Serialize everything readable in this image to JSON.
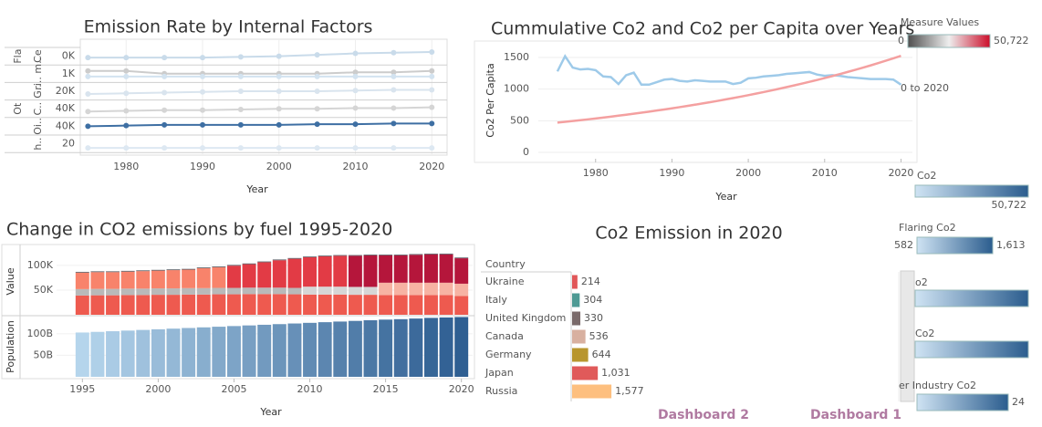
{
  "chart_data": [
    {
      "type": "multiples",
      "title": "Emission Rate by Internal Factors",
      "x_label": "Year",
      "x": [
        1975,
        1980,
        1985,
        1990,
        1995,
        2000,
        2005,
        2010,
        2015,
        2020
      ],
      "xlim": [
        1974,
        2022
      ],
      "xticks": [
        1980,
        1990,
        2000,
        2010,
        2020
      ],
      "grid": true,
      "rows": [
        {
          "group": "Fla",
          "label": "Ce",
          "tick_label": "0K",
          "ylim": [
            0,
            10
          ],
          "series": [
            {
              "color": "#c9dbea",
              "values": [
                4,
                4,
                4,
                4,
                4.5,
                5,
                6,
                7,
                7.5,
                8
              ]
            }
          ]
        },
        {
          "label": "ri.. m..",
          "tick_label": "1K",
          "ylim": [
            0,
            10
          ],
          "series": [
            {
              "color": "#cccccc",
              "values": [
                7,
                7,
                5,
                5,
                5,
                5,
                5,
                6,
                6,
                7
              ]
            },
            {
              "color": "#d3e3f0",
              "values": [
                3,
                3,
                3,
                3,
                3,
                3,
                3,
                3,
                3,
                3
              ]
            }
          ]
        },
        {
          "label": "G..",
          "tick_label": "20K",
          "ylim": [
            0,
            10
          ],
          "series": [
            {
              "color": "#d9e4ee",
              "values": [
                3,
                3.5,
                4,
                4.5,
                5,
                5,
                5,
                5.5,
                6,
                6
              ]
            }
          ]
        },
        {
          "group": "Ot",
          "label": "C..",
          "tick_label": "40K",
          "ylim": [
            0,
            10
          ],
          "series": [
            {
              "color": "#d5d5d5",
              "values": [
                3,
                3.5,
                4,
                4,
                4.5,
                5,
                5,
                5.5,
                5.5,
                6
              ]
            }
          ]
        },
        {
          "label": "Oi..",
          "tick_label": "40K",
          "ylim": [
            0,
            10
          ],
          "series": [
            {
              "color": "#3e6fa3",
              "values": [
                5,
                5.5,
                6,
                6,
                6,
                6,
                6.5,
                6.5,
                7,
                7
              ]
            }
          ]
        },
        {
          "label": "h..",
          "tick_label": "20",
          "ylim": [
            0,
            10
          ],
          "series": [
            {
              "color": "#dde8f2",
              "values": [
                2,
                2,
                2,
                2,
                2,
                2,
                2,
                2,
                2,
                2
              ]
            }
          ]
        }
      ]
    },
    {
      "type": "line",
      "title": "Cummulative Co2 and Co2 per Capita over Years",
      "x_label": "Year",
      "y_label": "Co2 Per Capita",
      "annotation": "0 to 2020",
      "x": [
        1975,
        1976,
        1977,
        1978,
        1979,
        1980,
        1981,
        1982,
        1983,
        1984,
        1985,
        1986,
        1987,
        1988,
        1989,
        1990,
        1991,
        1992,
        1993,
        1994,
        1995,
        1996,
        1997,
        1998,
        1999,
        2000,
        2001,
        2002,
        2003,
        2004,
        2005,
        2006,
        2007,
        2008,
        2009,
        2010,
        2011,
        2012,
        2013,
        2014,
        2015,
        2016,
        2017,
        2018,
        2019,
        2020
      ],
      "xlim": [
        1972.5,
        2021.5
      ],
      "xticks": [
        1980,
        1990,
        2000,
        2010,
        2020
      ],
      "ylim": [
        0,
        1650
      ],
      "yticks": [
        0,
        500,
        1000,
        1500
      ],
      "y2lim": [
        0,
        1650
      ],
      "grid": true,
      "series": [
        {
          "color": "#9ecae9",
          "values": [
            1280,
            1520,
            1340,
            1310,
            1320,
            1300,
            1200,
            1190,
            1080,
            1220,
            1260,
            1070,
            1070,
            1110,
            1150,
            1160,
            1130,
            1120,
            1140,
            1130,
            1120,
            1120,
            1120,
            1080,
            1100,
            1170,
            1180,
            1200,
            1210,
            1220,
            1240,
            1250,
            1260,
            1270,
            1230,
            1210,
            1220,
            1210,
            1190,
            1180,
            1170,
            1160,
            1160,
            1160,
            1150,
            1070
          ]
        },
        {
          "color": "#f4a0a0",
          "axis": "y2",
          "values": [
            470,
            483,
            495,
            508,
            522,
            536,
            550,
            565,
            580,
            595,
            611,
            627,
            644,
            661,
            678,
            696,
            715,
            734,
            753,
            773,
            793,
            814,
            836,
            858,
            881,
            904,
            928,
            953,
            978,
            1004,
            1031,
            1058,
            1086,
            1115,
            1144,
            1175,
            1206,
            1238,
            1271,
            1304,
            1339,
            1374,
            1411,
            1448,
            1487,
            1526
          ]
        }
      ]
    },
    {
      "type": "stacked",
      "title": "Change in CO2 emissions by fuel 1995-2020",
      "x_label": "Year",
      "x": [
        1995,
        1996,
        1997,
        1998,
        1999,
        2000,
        2001,
        2002,
        2003,
        2004,
        2005,
        2006,
        2007,
        2008,
        2009,
        2010,
        2011,
        2012,
        2013,
        2014,
        2015,
        2016,
        2017,
        2018,
        2019,
        2020
      ],
      "xlim": [
        1994.5,
        2020.5
      ],
      "xticks": [
        1995,
        2000,
        2005,
        2010,
        2015,
        2020
      ],
      "panes": [
        {
          "y_label": "Value",
          "ylim": [
            0,
            135000
          ],
          "yticks": [
            {
              "value": 50000,
              "label": "50K"
            },
            {
              "value": 100000,
              "label": "100K"
            }
          ],
          "series": [
            {
              "color": "#ee5a4f",
              "values": [
                39000,
                39500,
                39500,
                40000,
                40000,
                40500,
                40500,
                41000,
                41000,
                41500,
                41500,
                42000,
                42000,
                42000,
                41500,
                41000,
                41000,
                41000,
                40500,
                40500,
                40000,
                40000,
                40000,
                40000,
                40000,
                38000
              ]
            },
            {
              "colors": [
                "#b9b9b9",
                "#b9b9b9",
                "#b9b9b9",
                "#b9b9b9",
                "#b9b9b9",
                "#b9b9b9",
                "#b9b9b9",
                "#b9b9b9",
                "#b9b9b9",
                "#b9b9b9",
                "#b9b9b9",
                "#b9b9b9",
                "#b9b9b9",
                "#b9b9b9",
                "#b9b9b9",
                "#d6d6d6",
                "#d6d6d6",
                "#d6d6d6",
                "#d6d6d6",
                "#d6d6d6",
                "#f7b3a3",
                "#f7b3a3",
                "#f7b3a3",
                "#f7b3a3",
                "#f7b3a3",
                "#f7b3a3"
              ],
              "values": [
                13000,
                13000,
                13000,
                13000,
                13000,
                13000,
                13000,
                13000,
                13000,
                13000,
                13000,
                13000,
                13000,
                13000,
                13000,
                16000,
                16000,
                16000,
                16000,
                16000,
                25000,
                25000,
                25000,
                25000,
                25000,
                25000
              ]
            },
            {
              "colors": [
                "#f8836b",
                "#f8836b",
                "#f8836b",
                "#f8836b",
                "#f8836b",
                "#f8836b",
                "#f8836b",
                "#f8836b",
                "#f8836b",
                "#f8836b",
                "#e23b45",
                "#e23b45",
                "#e23b45",
                "#e23b45",
                "#e23b45",
                "#e23b45",
                "#e23b45",
                "#e23b45",
                "#b5163b",
                "#b5163b",
                "#b5163b",
                "#b5163b",
                "#b5163b",
                "#b5163b",
                "#b5163b",
                "#b5163b"
              ],
              "values": [
                33500,
                34000,
                34000,
                34500,
                35500,
                36000,
                37000,
                37500,
                40500,
                42000,
                45000,
                47500,
                51500,
                55500,
                59000,
                59500,
                61500,
                62500,
                63000,
                64000,
                55500,
                55500,
                56500,
                57500,
                57500,
                51500
              ]
            },
            {
              "color": "#555b63",
              "values": [
                1500,
                1500,
                1500,
                1500,
                1500,
                1500,
                1500,
                1500,
                1500,
                1500,
                1500,
                1500,
                1500,
                1500,
                1500,
                1500,
                1500,
                1500,
                1500,
                1500,
                1500,
                1500,
                1500,
                1500,
                1500,
                1500
              ]
            }
          ]
        },
        {
          "y_label": "Population",
          "ylim": [
            0,
            140000000000
          ],
          "yticks": [
            {
              "value": 50000000000,
              "label": "50B"
            },
            {
              "value": 100000000000,
              "label": "100B"
            }
          ],
          "series": [
            {
              "color_range": [
                "#b5d5ec",
                "#2f5f92"
              ],
              "values": [
                103000000000,
                104500000000,
                106000000000,
                107500000000,
                109000000000,
                110500000000,
                112000000000,
                113500000000,
                115000000000,
                116500000000,
                118000000000,
                119500000000,
                121000000000,
                122500000000,
                124000000000,
                125500000000,
                127000000000,
                128500000000,
                130000000000,
                131500000000,
                133000000000,
                134000000000,
                135500000000,
                137000000000,
                138000000000,
                139000000000
              ]
            }
          ]
        }
      ]
    },
    {
      "type": "barh",
      "title": "Co2 Emission in 2020",
      "header": "Country",
      "categories": [
        "Ukraine",
        "Italy",
        "United Kingdom",
        "Canada",
        "Germany",
        "Japan",
        "Russia"
      ],
      "values": [
        214,
        304,
        330,
        536,
        644,
        1031,
        1577
      ],
      "value_labels": [
        "214",
        "304",
        "330",
        "536",
        "644",
        "1,031",
        "1,577"
      ],
      "colors": [
        "#e15759",
        "#4e9a94",
        "#7a6a6a",
        "#d8b0a0",
        "#b8962e",
        "#e05a5a",
        "#fdbf7f"
      ],
      "xlim": [
        0,
        13100
      ]
    }
  ],
  "legends": [
    {
      "title": "Measure Values",
      "colors": [
        "#4f4f4f",
        "#eeeeee",
        "#cc0f2b"
      ],
      "ticks": [
        0,
        {
          "value": 50722,
          "label": "50,722"
        }
      ]
    },
    {
      "title": "Co2",
      "colors": [
        "#cfe3f3",
        "#2b5d8e"
      ],
      "ticks": [
        {
          "value": 50722,
          "label": "50,722"
        }
      ]
    },
    {
      "title": "Flaring Co2",
      "colors": [
        "#cfe3f3",
        "#2b5d8e"
      ],
      "ticks": [
        582,
        {
          "value": 1613,
          "label": "1,613"
        }
      ]
    },
    {
      "title": "o2",
      "colors": [
        "#cfe3f3",
        "#2b5d8e"
      ],
      "ticks": []
    },
    {
      "title": "Co2",
      "colors": [
        "#cfe3f3",
        "#2b5d8e"
      ],
      "ticks": []
    },
    {
      "title": "er Industry Co2",
      "colors": [
        "#cfe3f3",
        "#2b5d8e"
      ],
      "ticks": [
        24
      ]
    }
  ],
  "tabs": [
    "Dashboard 2",
    "Dashboard 1"
  ]
}
